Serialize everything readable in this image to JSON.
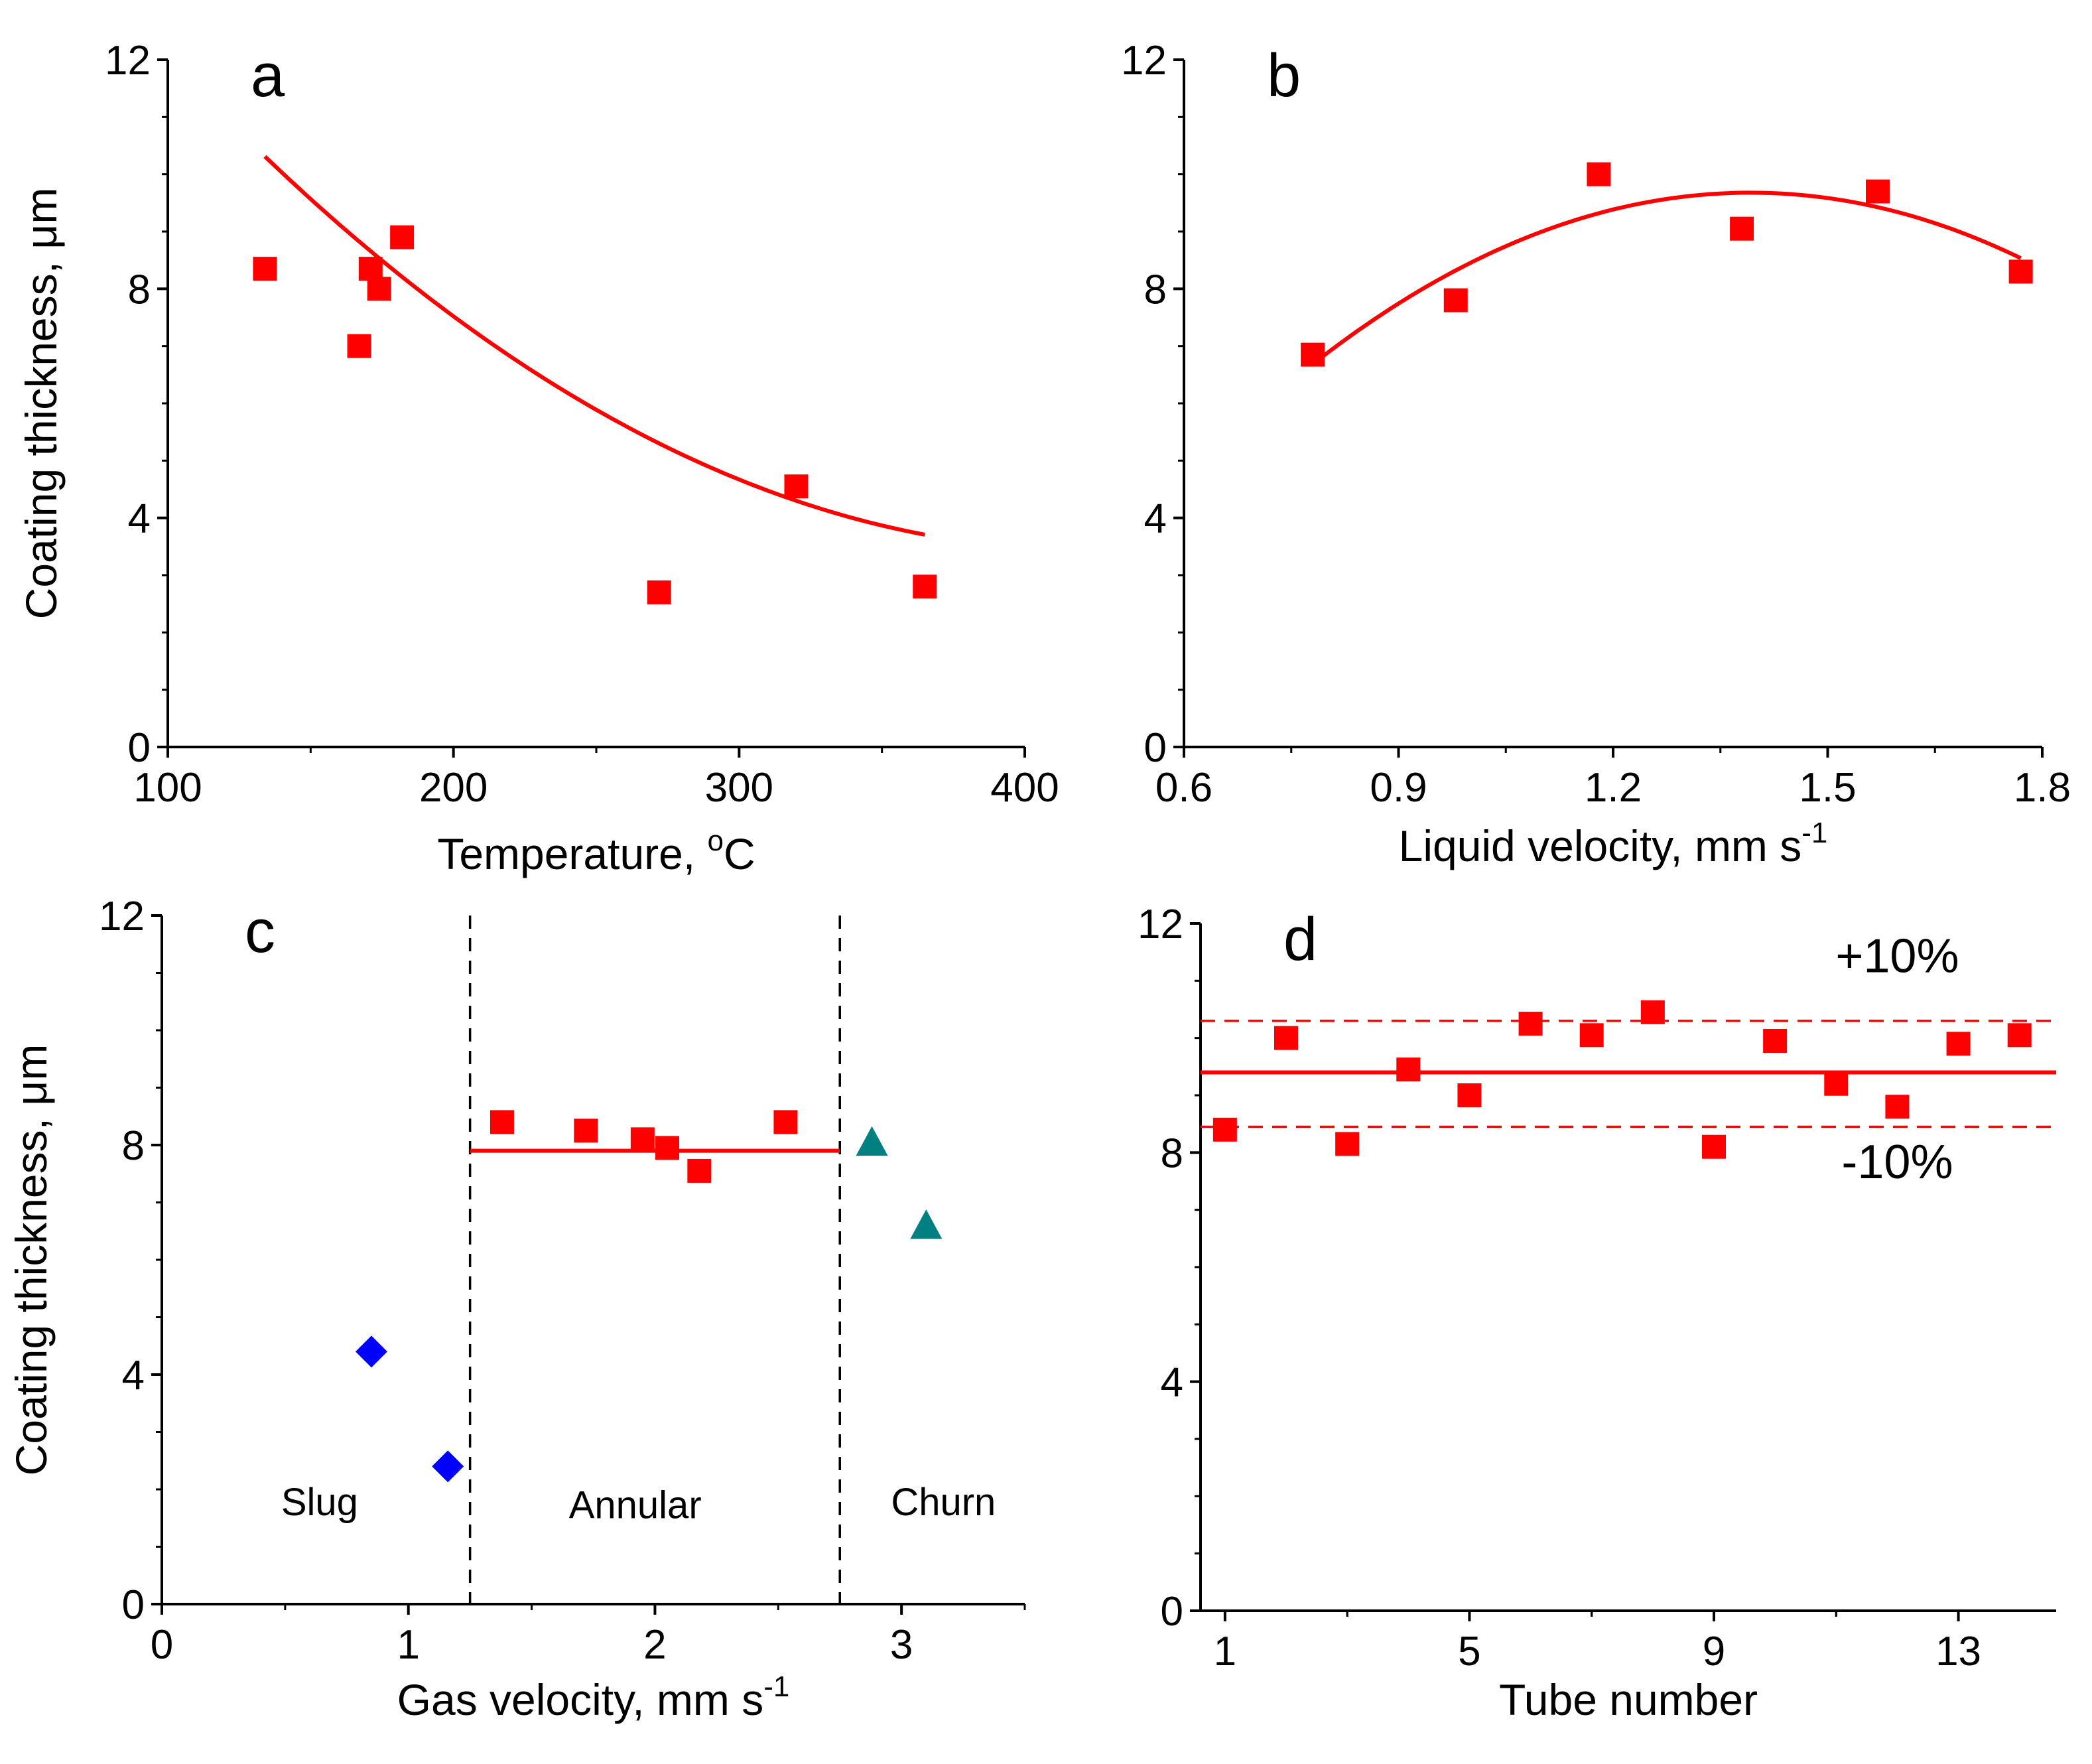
{
  "chart_data": [
    {
      "id": "a",
      "type": "scatter",
      "panel_letter": "a",
      "xlabel": "Temperature, ",
      "xlabel_sup": "o",
      "xlabel_post": "C",
      "ylabel": "Coating thickness, μm",
      "xlim": [
        100,
        400
      ],
      "ylim": [
        0,
        12
      ],
      "xticks": [
        100,
        200,
        300,
        400
      ],
      "xtick_labels": [
        "100",
        "200",
        "300",
        "400"
      ],
      "yticks": [
        0,
        4,
        8,
        12
      ],
      "ytick_labels": [
        "0",
        "4",
        "8",
        "12"
      ],
      "series": [
        {
          "name": "Coating thickness",
          "marker": "square",
          "color": "#ff0000",
          "x": [
            134,
            167,
            171,
            174,
            182,
            272,
            320,
            365
          ],
          "y": [
            8.35,
            7.0,
            8.35,
            8.0,
            8.9,
            2.7,
            4.55,
            2.8
          ]
        }
      ],
      "fit": {
        "kind": "polynomial",
        "color": "#ff0000",
        "x_range": [
          134,
          365
        ],
        "coefficients": [
          18.2,
          -0.07,
          8.3e-05
        ]
      }
    },
    {
      "id": "b",
      "type": "scatter",
      "panel_letter": "b",
      "xlabel": "Liquid velocity, mm s",
      "xlabel_sup": "-1",
      "xlabel_post": "",
      "ylabel": "",
      "xlim": [
        0.6,
        1.8
      ],
      "ylim": [
        0,
        12
      ],
      "xticks": [
        0.6,
        0.9,
        1.2,
        1.5,
        1.8
      ],
      "xtick_labels": [
        "0.6",
        "0.9",
        "1.2",
        "1.5",
        "1.8"
      ],
      "yticks": [
        0,
        4,
        8,
        12
      ],
      "ytick_labels": [
        "0",
        "4",
        "8",
        "12"
      ],
      "series": [
        {
          "name": "Coating thickness",
          "marker": "square",
          "color": "#ff0000",
          "x": [
            0.78,
            0.98,
            1.18,
            1.38,
            1.57,
            1.77
          ],
          "y": [
            6.85,
            7.8,
            10.0,
            9.05,
            9.7,
            8.3
          ]
        }
      ],
      "fit": {
        "kind": "polynomial",
        "color": "#ff0000",
        "x_range": [
          0.78,
          1.77
        ],
        "coefficients": [
          -5.82,
          22.27,
          -8.0
        ]
      }
    },
    {
      "id": "c",
      "type": "scatter",
      "panel_letter": "c",
      "xlabel": "Gas velocity, mm s",
      "xlabel_sup": "-1",
      "xlabel_post": "",
      "ylabel": "Coating thickness, μm",
      "xlim": [
        0,
        3.5
      ],
      "ylim": [
        0,
        12
      ],
      "xticks": [
        0,
        1,
        2,
        3
      ],
      "xtick_labels": [
        "0",
        "1",
        "2",
        "3"
      ],
      "yticks": [
        0,
        4,
        8,
        12
      ],
      "ytick_labels": [
        "0",
        "4",
        "8",
        "12"
      ],
      "series": [
        {
          "name": "Slug",
          "marker": "diamond",
          "color": "#0000ff",
          "x": [
            0.85,
            1.16
          ],
          "y": [
            4.4,
            2.4
          ]
        },
        {
          "name": "Annular",
          "marker": "square",
          "color": "#ff0000",
          "x": [
            1.38,
            1.72,
            1.95,
            2.05,
            2.18,
            2.53
          ],
          "y": [
            8.4,
            8.25,
            8.1,
            7.95,
            7.55,
            8.4
          ]
        },
        {
          "name": "Churn",
          "marker": "triangle",
          "color": "#008080",
          "x": [
            2.88,
            3.1
          ],
          "y": [
            8.05,
            6.6
          ]
        }
      ],
      "fit": {
        "kind": "constant",
        "color": "#ff0000",
        "x_range": [
          1.25,
          2.75
        ],
        "value": 7.9
      },
      "boundaries": [
        1.25,
        2.75
      ],
      "regions": [
        {
          "label": "Slug",
          "x": 0.64,
          "y": 1.55
        },
        {
          "label": "Annular",
          "x": 1.92,
          "y": 1.5
        },
        {
          "label": "Churn",
          "x": 3.17,
          "y": 1.55
        }
      ]
    },
    {
      "id": "d",
      "type": "scatter",
      "panel_letter": "d",
      "xlabel": "Tube number",
      "xlabel_sup": "",
      "xlabel_post": "",
      "ylabel": "",
      "xlim": [
        0.6,
        14.6
      ],
      "ylim": [
        0,
        12
      ],
      "xticks": [
        1,
        5,
        9,
        13
      ],
      "xtick_labels": [
        "1",
        "5",
        "9",
        "13"
      ],
      "yticks": [
        0,
        4,
        8,
        12
      ],
      "ytick_labels": [
        "0",
        "4",
        "8",
        "12"
      ],
      "series": [
        {
          "name": "Coating thickness",
          "marker": "square",
          "color": "#ff0000",
          "x": [
            1,
            2,
            3,
            4,
            5,
            6,
            7,
            8,
            9,
            10,
            11,
            12,
            13,
            14
          ],
          "y": [
            8.4,
            10.0,
            8.15,
            9.45,
            9.0,
            10.25,
            10.05,
            10.45,
            8.1,
            9.95,
            9.2,
            8.8,
            9.9,
            10.05
          ]
        }
      ],
      "fit": {
        "kind": "constant",
        "color": "#ff0000",
        "x_range": [
          0.6,
          14.6
        ],
        "value": 9.4
      },
      "bands": [
        {
          "value": 10.3,
          "label": "+10%",
          "label_x": 12.0,
          "label_y": 11.15
        },
        {
          "value": 8.45,
          "label": "-10%",
          "label_x": 12.0,
          "label_y": 7.55
        }
      ]
    }
  ]
}
